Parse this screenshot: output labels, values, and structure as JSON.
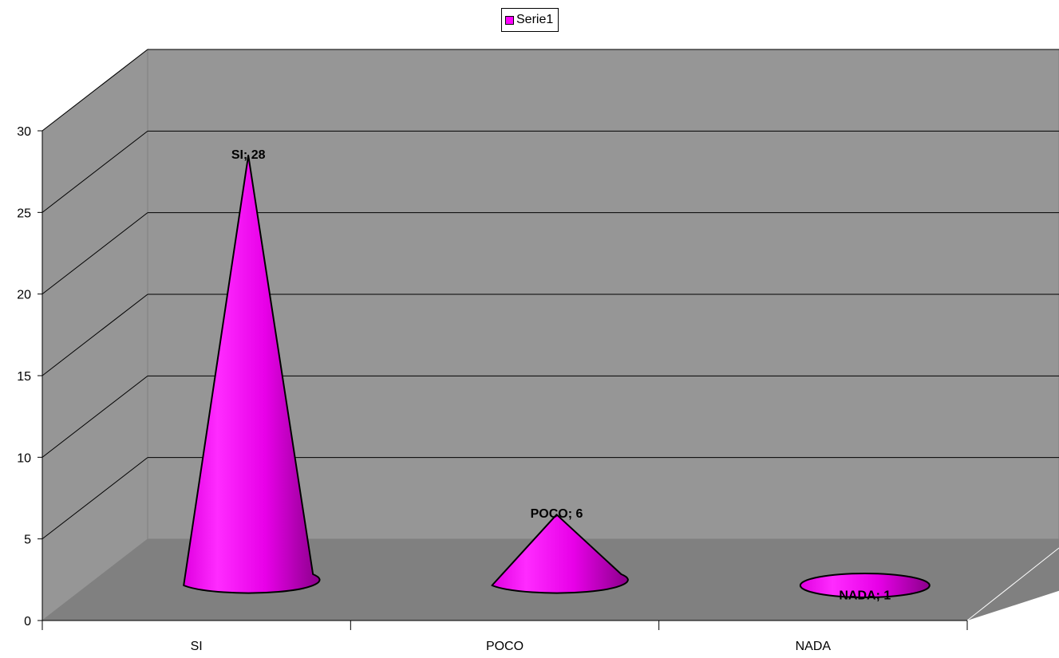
{
  "chart_data": {
    "type": "bar",
    "shape": "cone",
    "three_d": true,
    "categories": [
      "SI",
      "POCO",
      "NADA"
    ],
    "series": [
      {
        "name": "Serie1",
        "values": [
          28,
          6,
          1
        ],
        "data_labels": [
          "SI; 28",
          "POCO; 6",
          "NADA; 1"
        ]
      }
    ],
    "ylim": [
      0,
      30
    ],
    "yticks": [
      "0",
      "5",
      "10",
      "15",
      "20",
      "25",
      "30"
    ],
    "grid": true,
    "legend_position": "top"
  },
  "colors": {
    "series_fill": "#ff00ff",
    "wall": "#969696",
    "floor": "#808080",
    "grid": "#000000"
  }
}
